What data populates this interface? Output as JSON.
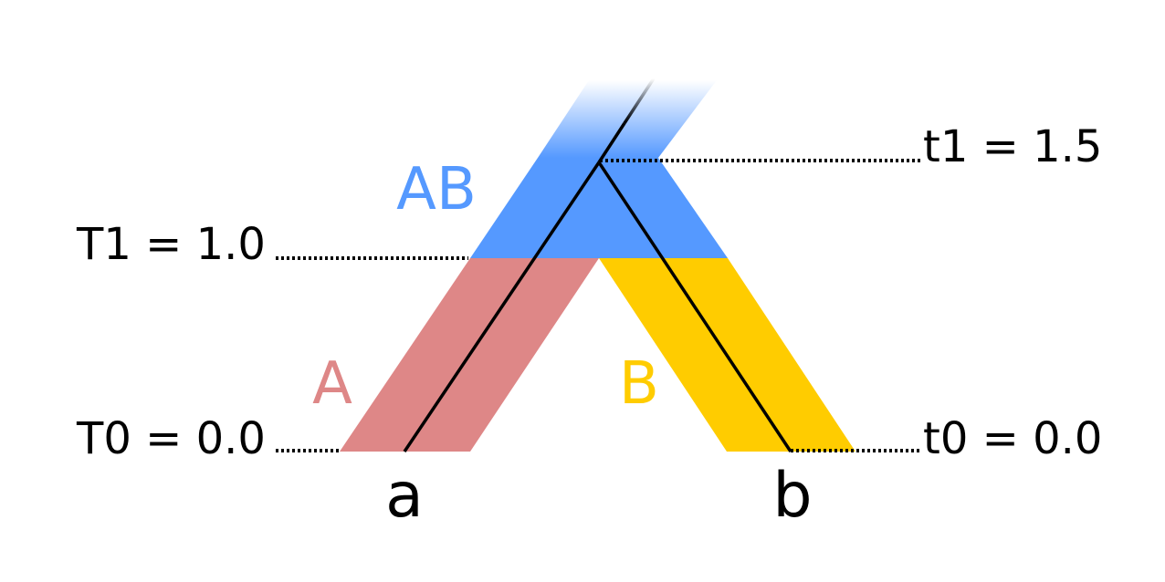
{
  "species": {
    "ancestor": {
      "label": "AB",
      "color": "#5599ff"
    },
    "left": {
      "label": "A",
      "color": "#de8787"
    },
    "right": {
      "label": "B",
      "color": "#ffcc00"
    }
  },
  "time_labels": {
    "T1": "T1 = 1.0",
    "T0": "T0 = 0.0",
    "t1": "t1 = 1.5",
    "t0": "t0 = 0.0"
  },
  "tips": {
    "a": "a",
    "b": "b"
  },
  "colors": {
    "gene_tree": "#000000",
    "text": "#000000"
  }
}
